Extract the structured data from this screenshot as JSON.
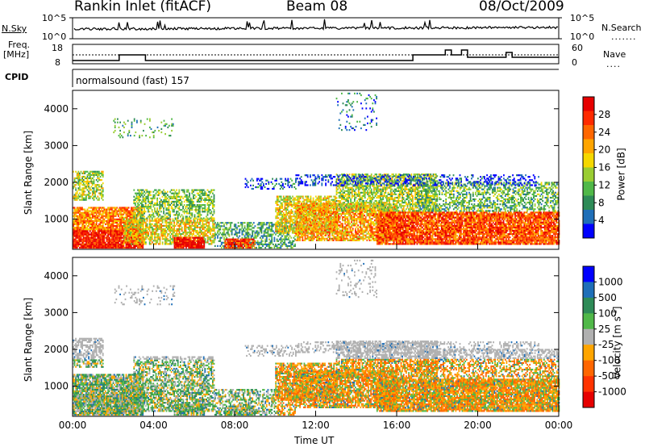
{
  "header": {
    "station": "Rankin Inlet (fitACF)",
    "beam": "Beam 08",
    "date": "08/Oct/2009"
  },
  "top_panels": {
    "nsky_label": "N.Sky",
    "nsky_ticks": [
      "10^5",
      "10^0"
    ],
    "nsearch_label": "N.Search",
    "freq_label": "Freq.",
    "freq_unit": "[MHz]",
    "freq_ticks": [
      "18",
      "8"
    ],
    "nave_label": "Nave",
    "nave_ticks": [
      "60",
      "0"
    ],
    "cpid_label": "CPID",
    "cpid_value": "normalsound (fast) 157"
  },
  "colors": {
    "power_scale": [
      "#0000ff",
      "#1f6fb8",
      "#2e8b57",
      "#50b848",
      "#9acd32",
      "#f5d800",
      "#ffa500",
      "#ff6600",
      "#ff2a00",
      "#e60000"
    ],
    "velocity_scale": [
      "#0000ff",
      "#1f6fb8",
      "#2e8b57",
      "#50b848",
      "#b0b0b0",
      "#ffa500",
      "#ff6600",
      "#ff3300",
      "#e60000"
    ]
  },
  "chart_data": [
    {
      "type": "heatmap",
      "name": "Power",
      "ylabel": "Slant Range [km]",
      "xlabel": "",
      "ylim": [
        180,
        4500
      ],
      "yticks": [
        "1000",
        "2000",
        "3000",
        "4000"
      ],
      "colorbar_label": "Power [dB]",
      "colorbar_ticks": [
        "4",
        "8",
        "12",
        "16",
        "20",
        "24",
        "28"
      ],
      "colorbar_range": [
        0,
        30
      ]
    },
    {
      "type": "heatmap",
      "name": "Velocity",
      "ylabel": "Slant Range [km]",
      "xlabel": "Time UT",
      "xticks": [
        "00:00",
        "04:00",
        "08:00",
        "12:00",
        "16:00",
        "20:00",
        "00:00"
      ],
      "ylim": [
        180,
        4500
      ],
      "yticks": [
        "1000",
        "2000",
        "3000",
        "4000"
      ],
      "colorbar_label": "Velocity [m s",
      "colorbar_label_sup": "-1",
      "colorbar_label_end": "]",
      "colorbar_ticks": [
        "1000",
        "500",
        "100",
        "25",
        "-25",
        "-100",
        "-500",
        "-1000"
      ]
    }
  ]
}
